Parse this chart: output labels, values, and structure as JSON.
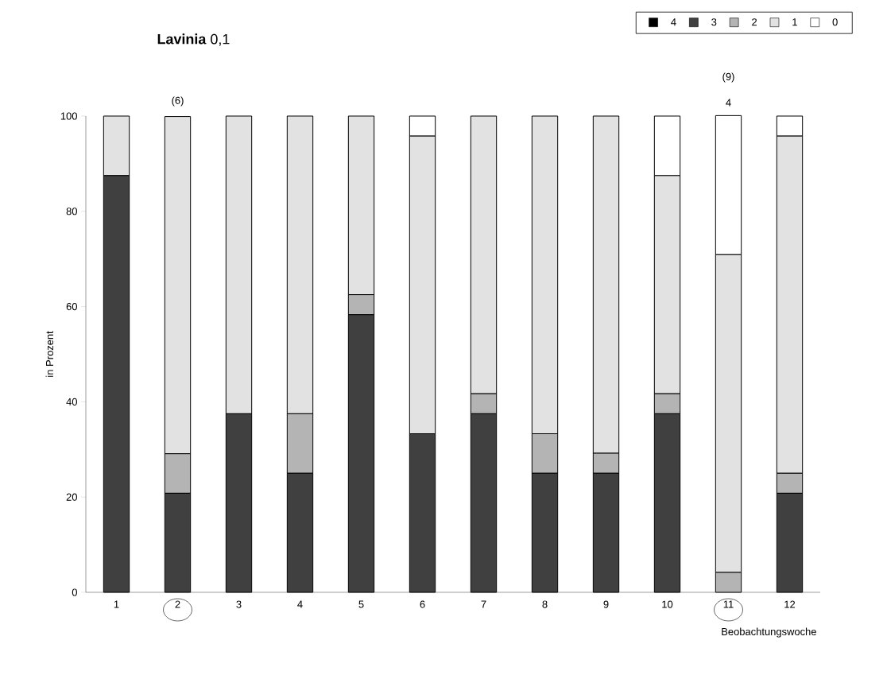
{
  "chart_data": {
    "type": "bar",
    "stacked": true,
    "title": "**Lavinia** 0,1",
    "xlabel": "Beobachtungswoche",
    "ylabel": "in Prozent",
    "categories": [
      "1",
      "2",
      "3",
      "4",
      "5",
      "6",
      "7",
      "8",
      "9",
      "10",
      "11",
      "12"
    ],
    "series": [
      {
        "name": "4",
        "color": "#000000",
        "values": [
          0,
          0,
          0,
          0,
          0,
          0,
          0,
          0,
          0,
          0,
          0,
          0
        ]
      },
      {
        "name": "3",
        "color": "#404040",
        "values": [
          87.5,
          20.8,
          37.5,
          25,
          58.3,
          33.3,
          37.5,
          25,
          25,
          37.5,
          0,
          20.8
        ]
      },
      {
        "name": "2",
        "color": "#b4b4b4",
        "values": [
          0,
          8.3,
          0,
          12.5,
          4.2,
          0,
          4.2,
          8.3,
          4.2,
          4.2,
          4.2,
          4.2
        ]
      },
      {
        "name": "1",
        "color": "#e2e2e2",
        "values": [
          12.5,
          70.8,
          62.5,
          62.5,
          37.5,
          62.5,
          58.3,
          66.7,
          70.8,
          45.8,
          66.7,
          70.8
        ]
      },
      {
        "name": "0",
        "color": "#ffffff",
        "values": [
          0,
          0,
          0,
          0,
          0,
          4.2,
          0,
          0,
          0,
          12.5,
          29.2,
          4.2
        ]
      }
    ],
    "annotations": [
      {
        "text": "(6)",
        "x": "2",
        "y": 100
      },
      "(9)",
      {
        "text": "4",
        "x": "11",
        "y": 100
      }
    ],
    "ylim": [
      0,
      100
    ],
    "yticks": [
      0,
      20,
      40,
      60,
      80,
      100
    ],
    "legend": "top right",
    "grid": false
  }
}
